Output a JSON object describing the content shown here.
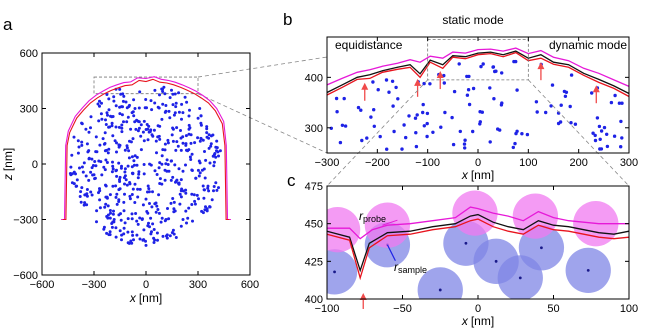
{
  "panels": {
    "a": "a",
    "b": "b",
    "c": "c"
  },
  "colors": {
    "dots": "#1e22e6",
    "red_line": "#e8141e",
    "black_line": "#111111",
    "magenta_line": "#e619d8",
    "probe_fill": "#f07af0",
    "sample_fill": "#7f86e6",
    "arrow": "#f04a4a"
  },
  "chart_data": [
    {
      "id": "a",
      "type": "scatter",
      "panel_label": "a",
      "xlabel_var": "x",
      "xlabel_unit": "[nm]",
      "ylabel_var": "z",
      "ylabel_unit": "[nm]",
      "xlim": [
        -600,
        600
      ],
      "ylim": [
        -600,
        600
      ],
      "xticks": [
        -600,
        -300,
        0,
        300,
        600
      ],
      "xtick_labels": [
        "−600",
        "−300",
        "0",
        "300",
        "600"
      ],
      "yticks": [
        -600,
        -300,
        0,
        300,
        600
      ],
      "ytick_labels": [
        "−600",
        "−300",
        "0",
        "300",
        "600"
      ],
      "dot_region": {
        "center": [
          0,
          0
        ],
        "radius": 440,
        "flat_bottom": -300,
        "count": 560
      },
      "series": [
        {
          "color": "red",
          "x": [
            -480,
            -462,
            -455,
            -440,
            -400,
            -360,
            -320,
            -280,
            -240,
            -200,
            -160,
            -120,
            -80,
            -40,
            0,
            40,
            80,
            120,
            160,
            200,
            240,
            280,
            320,
            360,
            400,
            440,
            455,
            462,
            480
          ],
          "y": [
            -300,
            -300,
            100,
            170,
            248,
            292,
            330,
            358,
            380,
            398,
            412,
            424,
            428,
            452,
            446,
            458,
            442,
            438,
            428,
            414,
            398,
            380,
            356,
            330,
            288,
            218,
            100,
            -300,
            -300
          ]
        },
        {
          "color": "magenta",
          "x": [
            -490,
            -470,
            -463,
            -448,
            -408,
            -368,
            -328,
            -288,
            -248,
            -208,
            -168,
            -128,
            -88,
            -48,
            0,
            48,
            88,
            128,
            168,
            208,
            248,
            288,
            328,
            368,
            408,
            448,
            463,
            470,
            490
          ],
          "y": [
            -300,
            -300,
            100,
            178,
            258,
            302,
            342,
            372,
            394,
            414,
            428,
            440,
            444,
            466,
            462,
            472,
            458,
            452,
            442,
            428,
            412,
            394,
            370,
            342,
            300,
            230,
            100,
            -300,
            -300
          ]
        }
      ],
      "zoom_box": {
        "x": [
          -300,
          300
        ],
        "y": [
          380,
          470
        ]
      }
    },
    {
      "id": "b",
      "type": "line",
      "panel_label": "b",
      "title": "static mode",
      "annotations": [
        "equidistance",
        "dynamic mode"
      ],
      "xlabel_var": "x",
      "xlabel_unit": "[nm]",
      "xlim": [
        -300,
        300
      ],
      "ylim": [
        250,
        480
      ],
      "xticks": [
        -300,
        -200,
        -100,
        0,
        100,
        200,
        300
      ],
      "xtick_labels": [
        "−300",
        "−200",
        "−100",
        "0",
        "100",
        "200",
        "300"
      ],
      "yticks": [
        300,
        400
      ],
      "ytick_labels": [
        "300",
        "400"
      ],
      "series": [
        {
          "color": "magenta",
          "x": [
            -300,
            -270,
            -240,
            -215,
            -190,
            -160,
            -135,
            -115,
            -95,
            -70,
            -50,
            -25,
            0,
            25,
            50,
            75,
            100,
            125,
            150,
            180,
            210,
            240,
            270,
            300
          ],
          "y": [
            385,
            398,
            410,
            415,
            422,
            428,
            435,
            430,
            442,
            438,
            450,
            448,
            455,
            456,
            452,
            458,
            447,
            453,
            440,
            433,
            418,
            408,
            395,
            382
          ]
        },
        {
          "color": "black",
          "x": [
            -300,
            -270,
            -240,
            -215,
            -190,
            -160,
            -135,
            -115,
            -95,
            -70,
            -50,
            -25,
            0,
            25,
            50,
            75,
            100,
            125,
            150,
            180,
            210,
            240,
            270,
            300
          ],
          "y": [
            370,
            385,
            400,
            405,
            413,
            420,
            425,
            407,
            434,
            425,
            443,
            441,
            448,
            450,
            445,
            452,
            438,
            445,
            430,
            425,
            408,
            396,
            383,
            368
          ]
        },
        {
          "color": "red",
          "x": [
            -300,
            -270,
            -240,
            -215,
            -190,
            -160,
            -135,
            -115,
            -95,
            -70,
            -50,
            -25,
            0,
            25,
            50,
            75,
            100,
            125,
            150,
            180,
            210,
            240,
            270,
            300
          ],
          "y": [
            365,
            380,
            396,
            398,
            410,
            416,
            420,
            400,
            430,
            418,
            440,
            437,
            445,
            447,
            441,
            449,
            433,
            438,
            426,
            420,
            404,
            390,
            378,
            362
          ]
        }
      ],
      "arrows_x": [
        -225,
        -120,
        -75,
        125,
        235
      ],
      "zoom_box": {
        "x": [
          -100,
          100
        ],
        "y": [
          395,
          475
        ]
      },
      "dot_region": {
        "count": 130
      }
    },
    {
      "id": "c",
      "type": "line",
      "panel_label": "c",
      "xlabel_var": "x",
      "xlabel_unit": "[nm]",
      "xlim": [
        -100,
        100
      ],
      "ylim": [
        400,
        475
      ],
      "xticks": [
        -100,
        -50,
        0,
        50,
        100
      ],
      "xtick_labels": [
        "−100",
        "−50",
        "0",
        "50",
        "100"
      ],
      "yticks": [
        400,
        425,
        450,
        475
      ],
      "ytick_labels": [
        "400",
        "425",
        "450",
        "475"
      ],
      "probe_label_main": "r",
      "probe_label_sub": "probe",
      "sample_label_main": "r",
      "sample_label_sub": "sample",
      "probes": [
        {
          "x": -93,
          "y": 446
        },
        {
          "x": -60,
          "y": 449
        },
        {
          "x": -2,
          "y": 457
        },
        {
          "x": 38,
          "y": 455
        },
        {
          "x": 78,
          "y": 450
        }
      ],
      "samples": [
        {
          "x": -95,
          "y": 418
        },
        {
          "x": -60,
          "y": 436
        },
        {
          "x": -25,
          "y": 406
        },
        {
          "x": -8,
          "y": 437
        },
        {
          "x": 12,
          "y": 425
        },
        {
          "x": 28,
          "y": 414
        },
        {
          "x": 42,
          "y": 434
        },
        {
          "x": 73,
          "y": 419
        }
      ],
      "probe_radius": 15,
      "sample_radius": 15,
      "series": [
        {
          "color": "magenta",
          "x": [
            -100,
            -85,
            -78,
            -70,
            -60,
            -45,
            -30,
            -15,
            -5,
            0,
            10,
            20,
            30,
            40,
            50,
            60,
            70,
            80,
            90,
            100
          ],
          "y": [
            447,
            447,
            440,
            446,
            449,
            450,
            452,
            454,
            461,
            460,
            457,
            455,
            452,
            458,
            454,
            452,
            451,
            450,
            450,
            450
          ]
        },
        {
          "color": "black",
          "x": [
            -100,
            -85,
            -78,
            -72,
            -60,
            -45,
            -30,
            -15,
            -5,
            0,
            10,
            20,
            30,
            40,
            50,
            60,
            70,
            80,
            90,
            100
          ],
          "y": [
            445,
            441,
            419,
            437,
            444,
            445,
            448,
            450,
            455,
            456,
            451,
            448,
            446,
            452,
            449,
            448,
            446,
            444,
            443,
            445
          ]
        },
        {
          "color": "red",
          "x": [
            -100,
            -85,
            -78,
            -72,
            -60,
            -45,
            -30,
            -15,
            -5,
            0,
            10,
            20,
            30,
            40,
            50,
            60,
            70,
            80,
            90,
            100
          ],
          "y": [
            443,
            439,
            414,
            434,
            442,
            443,
            446,
            448,
            452,
            453,
            448,
            445,
            443,
            449,
            446,
            445,
            443,
            441,
            440,
            441
          ]
        }
      ],
      "arrow_x": [
        -76
      ]
    }
  ]
}
